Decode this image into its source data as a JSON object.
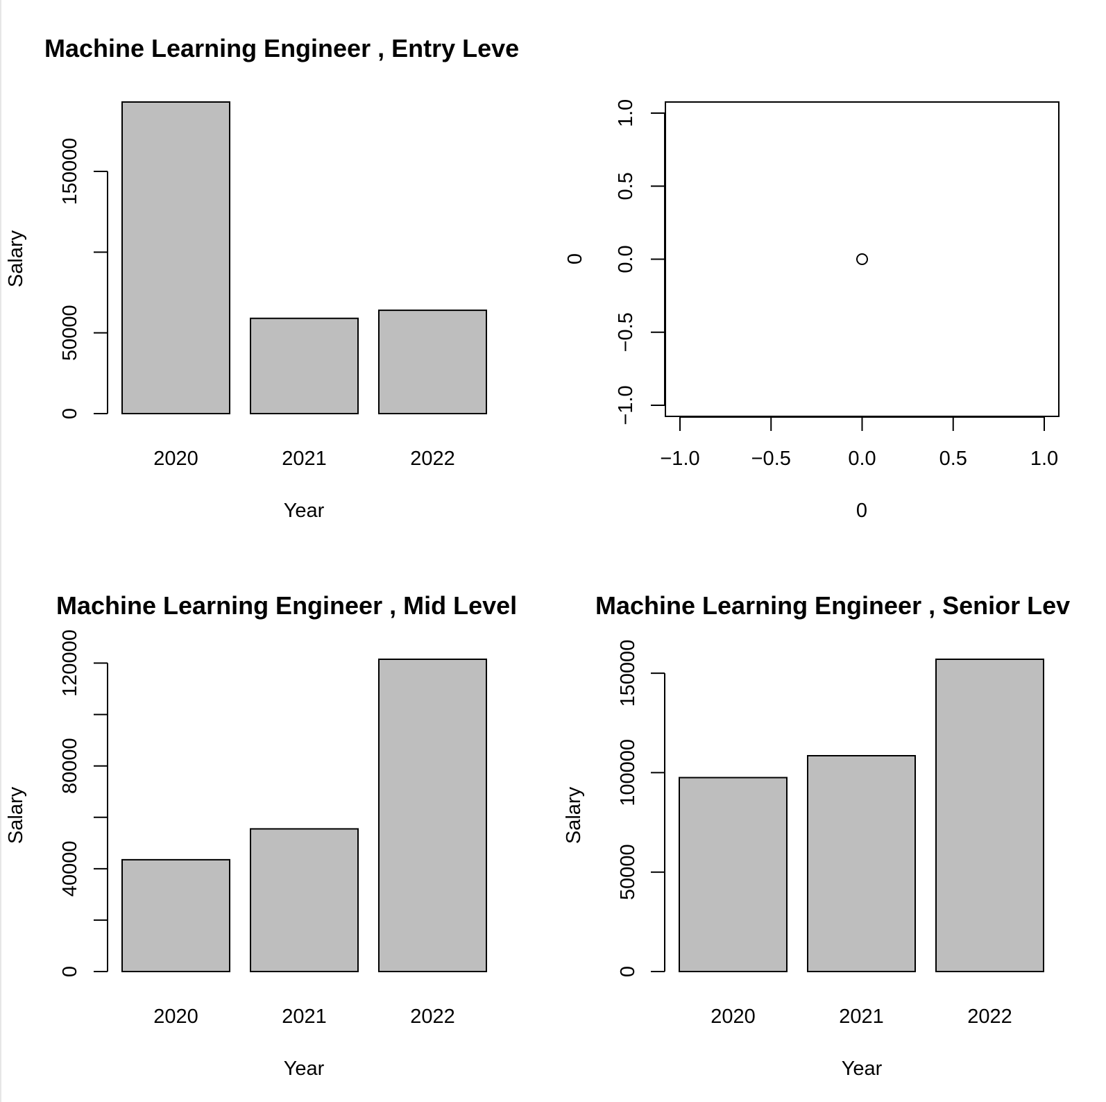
{
  "chart_data": [
    {
      "type": "bar",
      "title": "Machine Learning Engineer ,  Entry Leve",
      "xlabel": "Year",
      "ylabel": "Salary",
      "categories": [
        "2020",
        "2021",
        "2022"
      ],
      "values": [
        193000,
        59000,
        64000
      ],
      "ylim": [
        0,
        193000
      ],
      "yticks": [
        0,
        50000,
        100000,
        150000
      ],
      "ytick_labels": [
        "0",
        "50000",
        "",
        "150000"
      ],
      "colors": {
        "bar": "#bebebe",
        "stroke": "#000000"
      }
    },
    {
      "type": "scatter",
      "title": "",
      "xlabel": "0",
      "ylabel": "0",
      "points": [
        {
          "x": 0,
          "y": 0
        }
      ],
      "xlim": [
        -1,
        1
      ],
      "ylim": [
        -1,
        1
      ],
      "xticks": [
        -1.0,
        -0.5,
        0.0,
        0.5,
        1.0
      ],
      "xtick_labels": [
        "−1.0",
        "−0.5",
        "0.0",
        "0.5",
        "1.0"
      ],
      "yticks": [
        -1.0,
        -0.5,
        0.0,
        0.5,
        1.0
      ],
      "ytick_labels": [
        "−1.0",
        "−0.5",
        "0.0",
        "0.5",
        "1.0"
      ]
    },
    {
      "type": "bar",
      "title": "Machine Learning Engineer ,  Mid Level",
      "xlabel": "Year",
      "ylabel": "Salary",
      "categories": [
        "2020",
        "2021",
        "2022"
      ],
      "values": [
        43500,
        55500,
        121500
      ],
      "ylim": [
        0,
        121500
      ],
      "yticks": [
        0,
        20000,
        40000,
        60000,
        80000,
        100000,
        120000
      ],
      "ytick_labels": [
        "0",
        "",
        "40000",
        "",
        "80000",
        "",
        "120000"
      ],
      "colors": {
        "bar": "#bebebe",
        "stroke": "#000000"
      }
    },
    {
      "type": "bar",
      "title": "Machine Learning Engineer ,  Senior Lev",
      "xlabel": "Year",
      "ylabel": "Salary",
      "categories": [
        "2020",
        "2021",
        "2022"
      ],
      "values": [
        97500,
        108500,
        157000
      ],
      "ylim": [
        0,
        157000
      ],
      "yticks": [
        0,
        50000,
        100000,
        150000
      ],
      "ytick_labels": [
        "0",
        "50000",
        "100000",
        "150000"
      ],
      "colors": {
        "bar": "#bebebe",
        "stroke": "#000000"
      }
    }
  ]
}
